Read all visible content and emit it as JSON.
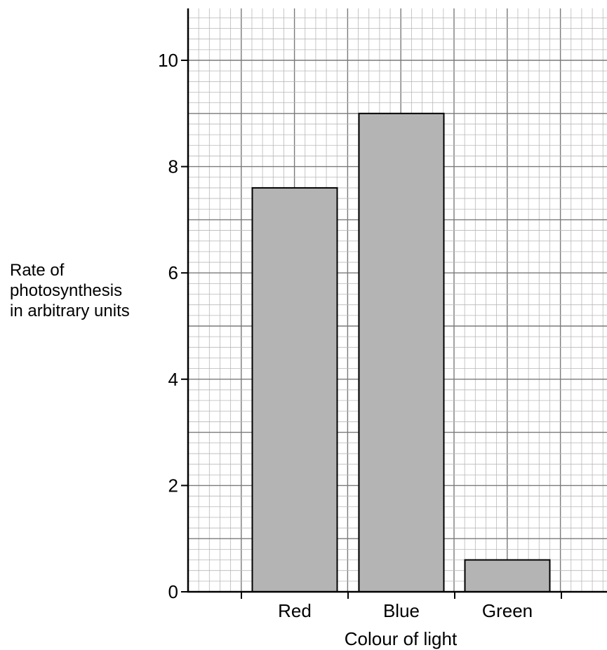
{
  "chart_data": {
    "type": "bar",
    "categories": [
      "Red",
      "Blue",
      "Green"
    ],
    "values": [
      7.6,
      9.0,
      0.6
    ],
    "xlabel": "Colour of light",
    "ylabel_lines": [
      "Rate of",
      "photosynthesis",
      "in arbitrary units"
    ],
    "ylim": [
      0,
      11
    ],
    "yticks": [
      {
        "value": 0,
        "label": "0"
      },
      {
        "value": 2,
        "label": "2"
      },
      {
        "value": 4,
        "label": "4"
      },
      {
        "value": 6,
        "label": "6"
      },
      {
        "value": 8,
        "label": "8"
      },
      {
        "value": 10,
        "label": "10"
      }
    ],
    "grid": true,
    "legend": "none",
    "colors": {
      "bar_fill": "#b4b4b4",
      "bar_stroke": "#000000",
      "grid_minor": "#b8b8b8",
      "grid_major": "#7a7a7a",
      "axis": "#000000"
    }
  }
}
